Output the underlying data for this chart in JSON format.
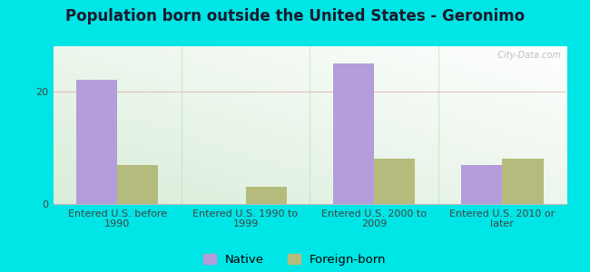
{
  "title": "Population born outside the United States - Geronimo",
  "categories": [
    "Entered U.S. before\n1990",
    "Entered U.S. 1990 to\n1999",
    "Entered U.S. 2000 to\n2009",
    "Entered U.S. 2010 or\nlater"
  ],
  "native_values": [
    22,
    0,
    25,
    7
  ],
  "foreign_values": [
    7,
    3,
    8,
    8
  ],
  "native_color": "#b39ddb",
  "foreign_color": "#b5bb7c",
  "bar_width": 0.32,
  "ylim": [
    0,
    28
  ],
  "yticks": [
    0,
    20
  ],
  "background_outer": "#00e5e5",
  "title_fontsize": 12,
  "tick_fontsize": 8,
  "legend_fontsize": 9.5,
  "watermark": "  City-Data.com"
}
